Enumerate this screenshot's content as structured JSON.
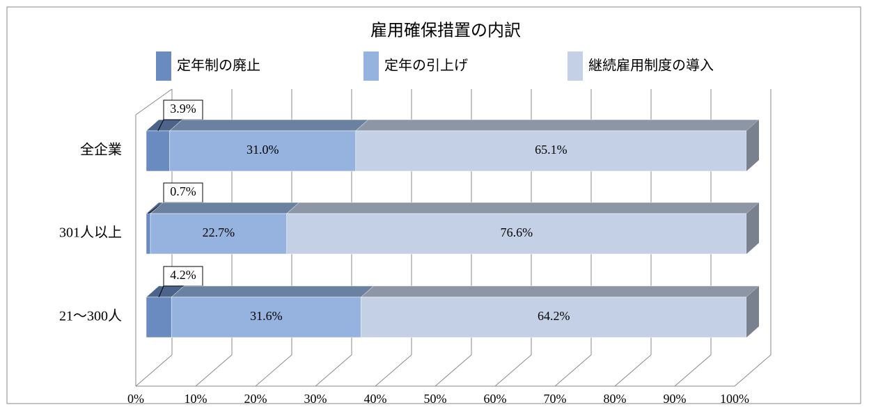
{
  "chart_data": {
    "type": "bar",
    "orientation": "horizontal",
    "stacked": true,
    "three_d": true,
    "title": "雇用確保措置の内訳",
    "categories": [
      "全企業",
      "301人以上",
      "21～300人"
    ],
    "series": [
      {
        "name": "定年制の廃止",
        "color": "#6a8bbf",
        "values": [
          3.9,
          0.7,
          4.2
        ],
        "value_labels": [
          "3.9%",
          "0.7%",
          "4.2%"
        ]
      },
      {
        "name": "定年の引上げ",
        "color": "#95b3de",
        "values": [
          31.0,
          22.7,
          31.6
        ],
        "value_labels": [
          "31.0%",
          "22.7%",
          "31.6%"
        ]
      },
      {
        "name": "継続雇用制度の導入",
        "color": "#c3d0e5",
        "values": [
          65.1,
          76.6,
          64.2
        ],
        "value_labels": [
          "65.1%",
          "76.6%",
          "64.2%"
        ]
      }
    ],
    "xlim": [
      0,
      100
    ],
    "xticks": [
      {
        "value": 0,
        "label": "0%"
      },
      {
        "value": 10,
        "label": "10%"
      },
      {
        "value": 20,
        "label": "20%"
      },
      {
        "value": 30,
        "label": "30%"
      },
      {
        "value": 40,
        "label": "40%"
      },
      {
        "value": 50,
        "label": "50%"
      },
      {
        "value": 60,
        "label": "60%"
      },
      {
        "value": 70,
        "label": "70%"
      },
      {
        "value": 80,
        "label": "80%"
      },
      {
        "value": 90,
        "label": "90%"
      },
      {
        "value": 100,
        "label": "100%"
      }
    ],
    "grid": true,
    "legend": "top"
  }
}
